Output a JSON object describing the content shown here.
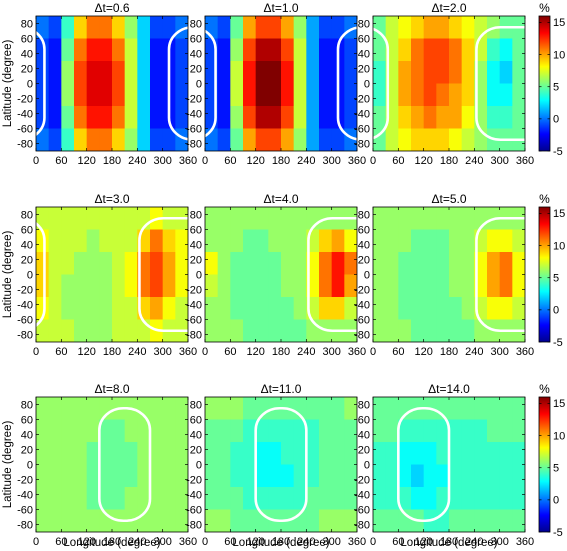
{
  "chart_data": {
    "type": "heatmap",
    "xlabel": "Longitude (degree)",
    "ylabel": "Latitude (degree)",
    "colorbar_unit": "%",
    "xlim": [
      0,
      360
    ],
    "ylim": [
      -90,
      90
    ],
    "clim": [
      -5,
      16
    ],
    "xticks": [
      0,
      60,
      120,
      180,
      240,
      300,
      360
    ],
    "yticks": [
      80,
      60,
      40,
      20,
      0,
      -20,
      -40,
      -60,
      -80
    ],
    "colorbar_ticks": [
      15,
      10,
      5,
      0,
      -5
    ],
    "colormap": "jet",
    "grid_columns": [
      "0-30",
      "30-60",
      "60-90",
      "90-120",
      "120-150",
      "150-180",
      "180-210",
      "210-240",
      "240-270",
      "270-300",
      "300-330",
      "330-360"
    ],
    "grid_rows": [
      "90 to 60",
      "60 to 30",
      "30 to 0",
      "0 to -30",
      "-30 to -60",
      "-60 to -90"
    ],
    "panels": [
      {
        "title": "Δt=0.6",
        "contour_lon_range": [
          [
            0,
            20
          ],
          [
            315,
            360
          ]
        ],
        "values": [
          [
            0,
            -1,
            4,
            9,
            11,
            11,
            9,
            6,
            2,
            -1,
            -1,
            0
          ],
          [
            -1,
            -2,
            5,
            11,
            13,
            13,
            11,
            7,
            2,
            -2,
            -2,
            -1
          ],
          [
            -1,
            -2,
            6,
            12,
            14,
            14,
            12,
            7,
            2,
            -2,
            -2,
            -1
          ],
          [
            -1,
            -2,
            6,
            12,
            14,
            14,
            12,
            7,
            2,
            -2,
            -2,
            -1
          ],
          [
            -1,
            -2,
            5,
            11,
            13,
            13,
            11,
            7,
            2,
            -2,
            -2,
            -1
          ],
          [
            0,
            -1,
            4,
            9,
            11,
            11,
            9,
            6,
            2,
            -1,
            -1,
            0
          ]
        ]
      },
      {
        "title": "Δt=1.0",
        "contour_lon_range": [
          [
            0,
            25
          ],
          [
            315,
            360
          ]
        ],
        "values": [
          [
            0,
            -1,
            5,
            10,
            12,
            12,
            10,
            6,
            1,
            -1,
            -1,
            0
          ],
          [
            -1,
            -2,
            6,
            12,
            15,
            15,
            12,
            7,
            1,
            -2,
            -2,
            -1
          ],
          [
            -1,
            -2,
            7,
            13,
            16,
            16,
            13,
            7,
            1,
            -2,
            -2,
            -1
          ],
          [
            -1,
            -2,
            7,
            13,
            16,
            16,
            13,
            7,
            1,
            -2,
            -2,
            -1
          ],
          [
            -1,
            -2,
            6,
            12,
            15,
            15,
            12,
            7,
            1,
            -2,
            -2,
            -1
          ],
          [
            0,
            -1,
            5,
            10,
            12,
            12,
            10,
            6,
            1,
            -1,
            -1,
            0
          ]
        ]
      },
      {
        "title": "Δt=2.0",
        "contour_lon_range": [
          [
            0,
            35
          ],
          [
            245,
            360
          ]
        ],
        "values": [
          [
            5,
            7,
            8,
            9,
            10,
            10,
            9,
            8,
            7,
            6,
            5,
            5
          ],
          [
            5,
            7,
            9,
            11,
            12,
            12,
            11,
            9,
            7,
            4,
            3,
            5
          ],
          [
            4,
            7,
            10,
            11,
            12,
            12,
            11,
            9,
            6,
            3,
            2,
            5
          ],
          [
            4,
            7,
            10,
            11,
            12,
            11,
            10,
            9,
            6,
            3,
            3,
            5
          ],
          [
            5,
            7,
            9,
            10,
            11,
            10,
            10,
            8,
            6,
            4,
            4,
            5
          ],
          [
            5,
            7,
            8,
            9,
            9,
            9,
            8,
            7,
            6,
            5,
            5,
            5
          ]
        ]
      },
      {
        "title": "Δt=3.0",
        "contour_lon_range": [
          [
            0,
            20
          ],
          [
            245,
            360
          ]
        ],
        "values": [
          [
            7,
            7,
            7,
            7,
            7,
            7,
            7,
            7,
            7,
            8,
            7,
            7
          ],
          [
            8,
            7,
            7,
            7,
            6,
            7,
            7,
            7,
            9,
            11,
            9,
            8
          ],
          [
            9,
            7,
            7,
            6,
            6,
            6,
            7,
            8,
            11,
            12,
            10,
            8
          ],
          [
            9,
            7,
            6,
            6,
            6,
            6,
            7,
            8,
            11,
            12,
            10,
            8
          ],
          [
            8,
            7,
            6,
            6,
            6,
            6,
            7,
            7,
            9,
            10,
            8,
            7
          ],
          [
            7,
            7,
            7,
            6,
            6,
            6,
            7,
            7,
            7,
            8,
            7,
            7
          ]
        ]
      },
      {
        "title": "Δt=4.0",
        "contour_lon_range": [
          [
            245,
            360
          ]
        ],
        "values": [
          [
            6,
            6,
            6,
            6,
            6,
            6,
            6,
            6,
            6,
            6,
            6,
            6
          ],
          [
            6,
            6,
            6,
            5,
            5,
            6,
            6,
            6,
            7,
            9,
            10,
            8
          ],
          [
            8,
            6,
            5,
            5,
            5,
            5,
            6,
            6,
            8,
            11,
            13,
            11
          ],
          [
            7,
            6,
            5,
            5,
            5,
            5,
            6,
            6,
            8,
            11,
            13,
            10
          ],
          [
            6,
            6,
            5,
            5,
            5,
            5,
            5,
            6,
            7,
            9,
            9,
            7
          ],
          [
            6,
            6,
            6,
            5,
            5,
            5,
            5,
            5,
            6,
            6,
            6,
            6
          ]
        ]
      },
      {
        "title": "Δt=5.0",
        "contour_lon_range": [
          [
            245,
            360
          ]
        ],
        "values": [
          [
            6,
            6,
            6,
            6,
            6,
            6,
            6,
            6,
            6,
            6,
            6,
            6
          ],
          [
            6,
            6,
            6,
            5,
            5,
            5,
            6,
            6,
            7,
            8,
            8,
            7
          ],
          [
            6,
            6,
            5,
            5,
            5,
            5,
            6,
            6,
            8,
            10,
            11,
            8
          ],
          [
            6,
            6,
            5,
            5,
            5,
            5,
            6,
            6,
            8,
            10,
            11,
            8
          ],
          [
            6,
            6,
            5,
            5,
            5,
            5,
            5,
            6,
            7,
            8,
            8,
            7
          ],
          [
            6,
            6,
            6,
            5,
            5,
            5,
            5,
            5,
            6,
            6,
            6,
            6
          ]
        ]
      },
      {
        "title": "Δt=8.0",
        "contour_lon_range": [
          [
            150,
            270
          ]
        ],
        "values": [
          [
            6,
            6,
            6,
            6,
            6,
            6,
            6,
            6,
            6,
            6,
            6,
            6
          ],
          [
            6,
            6,
            6,
            6,
            6,
            5,
            5,
            6,
            6,
            6,
            6,
            6
          ],
          [
            6,
            6,
            6,
            6,
            5,
            5,
            5,
            5,
            6,
            6,
            6,
            6
          ],
          [
            6,
            6,
            6,
            6,
            5,
            5,
            5,
            5,
            6,
            6,
            6,
            6
          ],
          [
            6,
            6,
            6,
            6,
            5,
            5,
            5,
            6,
            6,
            6,
            6,
            6
          ],
          [
            6,
            6,
            6,
            6,
            6,
            6,
            6,
            6,
            6,
            6,
            6,
            6
          ]
        ]
      },
      {
        "title": "Δt=11.0",
        "contour_lon_range": [
          [
            120,
            240
          ]
        ],
        "values": [
          [
            6,
            6,
            6,
            5,
            5,
            5,
            5,
            5,
            5,
            5,
            5,
            6
          ],
          [
            5,
            5,
            5,
            4,
            4,
            4,
            4,
            4,
            4,
            5,
            5,
            5
          ],
          [
            5,
            5,
            4,
            4,
            3,
            3,
            4,
            4,
            4,
            5,
            5,
            5
          ],
          [
            5,
            5,
            4,
            4,
            3,
            3,
            3,
            4,
            4,
            5,
            5,
            5
          ],
          [
            5,
            5,
            5,
            4,
            4,
            4,
            4,
            4,
            5,
            5,
            5,
            5
          ],
          [
            6,
            6,
            5,
            5,
            5,
            5,
            5,
            5,
            5,
            6,
            6,
            6
          ]
        ]
      },
      {
        "title": "Δt=14.0",
        "contour_lon_range": [
          [
            60,
            180
          ]
        ],
        "values": [
          [
            5,
            5,
            5,
            5,
            5,
            5,
            5,
            5,
            5,
            5,
            5,
            5
          ],
          [
            5,
            5,
            4,
            4,
            4,
            4,
            4,
            4,
            4,
            5,
            5,
            5
          ],
          [
            4,
            4,
            3,
            3,
            3,
            4,
            4,
            4,
            4,
            4,
            4,
            4
          ],
          [
            4,
            4,
            3,
            2,
            3,
            3,
            4,
            4,
            4,
            4,
            4,
            4
          ],
          [
            4,
            4,
            4,
            3,
            3,
            4,
            4,
            4,
            4,
            4,
            4,
            4
          ],
          [
            5,
            5,
            5,
            5,
            4,
            4,
            5,
            5,
            5,
            5,
            5,
            5
          ]
        ]
      }
    ]
  }
}
